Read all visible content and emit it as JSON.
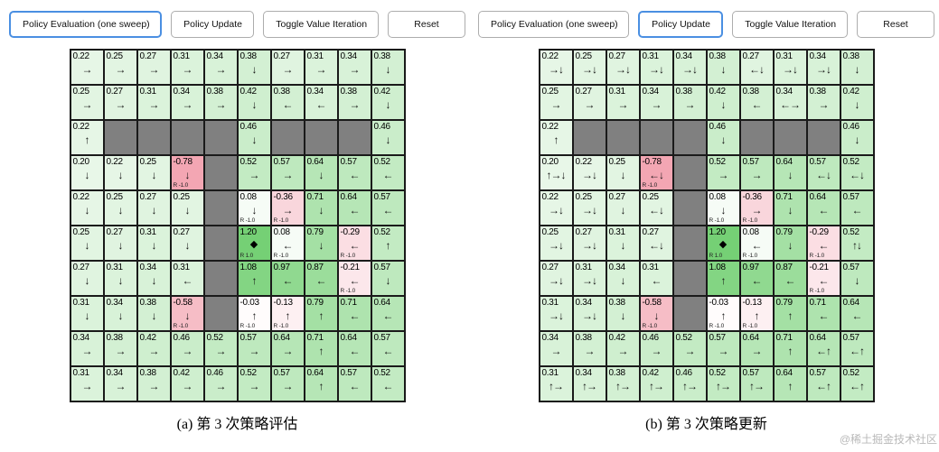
{
  "watermark": "@稀土掘金技术社区",
  "colors": {
    "active_button_border": "#4a8fe2",
    "button_border": "#adadad",
    "wall": "#808080",
    "positive_rgb": "0,168,0",
    "negative_rgb": "224,28,60",
    "grid_line": "#1a1a1a"
  },
  "panels": [
    {
      "caption": "(a) 第 3 次策略评估",
      "buttons": [
        {
          "label": "Policy Evaluation (one sweep)",
          "active": true
        },
        {
          "label": "Policy Update",
          "active": false
        },
        {
          "label": "Toggle Value Iteration",
          "active": false
        },
        {
          "label": "Reset",
          "active": false
        }
      ],
      "grid": [
        [
          {
            "t": "0.22",
            "a": "→"
          },
          {
            "t": "0.25",
            "a": "→"
          },
          {
            "t": "0.27",
            "a": "→"
          },
          {
            "t": "0.31",
            "a": "→"
          },
          {
            "t": "0.34",
            "a": "→"
          },
          {
            "t": "0.38",
            "a": "↓"
          },
          {
            "t": "0.27",
            "a": "→"
          },
          {
            "t": "0.31",
            "a": "→"
          },
          {
            "t": "0.34",
            "a": "→"
          },
          {
            "t": "0.38",
            "a": "↓"
          }
        ],
        [
          {
            "t": "0.25",
            "a": "→"
          },
          {
            "t": "0.27",
            "a": "→"
          },
          {
            "t": "0.31",
            "a": "→"
          },
          {
            "t": "0.34",
            "a": "→"
          },
          {
            "t": "0.38",
            "a": "→"
          },
          {
            "t": "0.42",
            "a": "↓"
          },
          {
            "t": "0.38",
            "a": "←"
          },
          {
            "t": "0.34",
            "a": "←"
          },
          {
            "t": "0.38",
            "a": "→"
          },
          {
            "t": "0.42",
            "a": "↓"
          }
        ],
        [
          {
            "t": "0.22",
            "a": "↑"
          },
          {
            "w": 1
          },
          {
            "w": 1
          },
          {
            "w": 1
          },
          {
            "w": 1
          },
          {
            "t": "0.46",
            "a": "↓"
          },
          {
            "w": 1
          },
          {
            "w": 1
          },
          {
            "w": 1
          },
          {
            "t": "0.46",
            "a": "↓"
          }
        ],
        [
          {
            "t": "0.20",
            "a": "↓"
          },
          {
            "t": "0.22",
            "a": "↓"
          },
          {
            "t": "0.25",
            "a": "↓"
          },
          {
            "t": "-0.78",
            "a": "↓",
            "r": "R -1.0"
          },
          {
            "w": 1
          },
          {
            "t": "0.52",
            "a": "→"
          },
          {
            "t": "0.57",
            "a": "→"
          },
          {
            "t": "0.64",
            "a": "↓"
          },
          {
            "t": "0.57",
            "a": "←"
          },
          {
            "t": "0.52",
            "a": "←"
          }
        ],
        [
          {
            "t": "0.22",
            "a": "↓"
          },
          {
            "t": "0.25",
            "a": "↓"
          },
          {
            "t": "0.27",
            "a": "↓"
          },
          {
            "t": "0.25",
            "a": "↓"
          },
          {
            "w": 1
          },
          {
            "t": "0.08",
            "a": "↓",
            "r": "R -1.0"
          },
          {
            "t": "-0.36",
            "a": "→",
            "r": "R -1.0"
          },
          {
            "t": "0.71",
            "a": "↓"
          },
          {
            "t": "0.64",
            "a": "←"
          },
          {
            "t": "0.57",
            "a": "←"
          }
        ],
        [
          {
            "t": "0.25",
            "a": "↓"
          },
          {
            "t": "0.27",
            "a": "↓"
          },
          {
            "t": "0.31",
            "a": "↓"
          },
          {
            "t": "0.27",
            "a": "↓"
          },
          {
            "w": 1
          },
          {
            "t": "1.20",
            "a": "",
            "r": "R 1.0",
            "g": 1
          },
          {
            "t": "0.08",
            "a": "←",
            "r": "R -1.0"
          },
          {
            "t": "0.79",
            "a": "↓"
          },
          {
            "t": "-0.29",
            "a": "←",
            "r": "R -1.0"
          },
          {
            "t": "0.52",
            "a": "↑"
          }
        ],
        [
          {
            "t": "0.27",
            "a": "↓"
          },
          {
            "t": "0.31",
            "a": "↓"
          },
          {
            "t": "0.34",
            "a": "↓"
          },
          {
            "t": "0.31",
            "a": "←"
          },
          {
            "w": 1
          },
          {
            "t": "1.08",
            "a": "↑"
          },
          {
            "t": "0.97",
            "a": "←"
          },
          {
            "t": "0.87",
            "a": "←"
          },
          {
            "t": "-0.21",
            "a": "←",
            "r": "R -1.0"
          },
          {
            "t": "0.57",
            "a": "↓"
          }
        ],
        [
          {
            "t": "0.31",
            "a": "↓"
          },
          {
            "t": "0.34",
            "a": "↓"
          },
          {
            "t": "0.38",
            "a": "↓"
          },
          {
            "t": "-0.58",
            "a": "↓",
            "r": "R -1.0"
          },
          {
            "w": 1
          },
          {
            "t": "-0.03",
            "a": "↑",
            "r": "R -1.0"
          },
          {
            "t": "-0.13",
            "a": "↑",
            "r": "R -1.0"
          },
          {
            "t": "0.79",
            "a": "↑"
          },
          {
            "t": "0.71",
            "a": "←"
          },
          {
            "t": "0.64",
            "a": "←"
          }
        ],
        [
          {
            "t": "0.34",
            "a": "→"
          },
          {
            "t": "0.38",
            "a": "→"
          },
          {
            "t": "0.42",
            "a": "→"
          },
          {
            "t": "0.46",
            "a": "→"
          },
          {
            "t": "0.52",
            "a": "→"
          },
          {
            "t": "0.57",
            "a": "→"
          },
          {
            "t": "0.64",
            "a": "→"
          },
          {
            "t": "0.71",
            "a": "↑"
          },
          {
            "t": "0.64",
            "a": "←"
          },
          {
            "t": "0.57",
            "a": "←"
          }
        ],
        [
          {
            "t": "0.31",
            "a": "→"
          },
          {
            "t": "0.34",
            "a": "→"
          },
          {
            "t": "0.38",
            "a": "→"
          },
          {
            "t": "0.42",
            "a": "→"
          },
          {
            "t": "0.46",
            "a": "→"
          },
          {
            "t": "0.52",
            "a": "→"
          },
          {
            "t": "0.57",
            "a": "→"
          },
          {
            "t": "0.64",
            "a": "↑"
          },
          {
            "t": "0.57",
            "a": "←"
          },
          {
            "t": "0.52",
            "a": "←"
          }
        ]
      ]
    },
    {
      "caption": "(b) 第 3 次策略更新",
      "buttons": [
        {
          "label": "Policy Evaluation (one sweep)",
          "active": false
        },
        {
          "label": "Policy Update",
          "active": true
        },
        {
          "label": "Toggle Value Iteration",
          "active": false
        },
        {
          "label": "Reset",
          "active": false
        }
      ],
      "grid": [
        [
          {
            "t": "0.22",
            "a": "→↓"
          },
          {
            "t": "0.25",
            "a": "→↓"
          },
          {
            "t": "0.27",
            "a": "→↓"
          },
          {
            "t": "0.31",
            "a": "→↓"
          },
          {
            "t": "0.34",
            "a": "→↓"
          },
          {
            "t": "0.38",
            "a": "↓"
          },
          {
            "t": "0.27",
            "a": "←↓"
          },
          {
            "t": "0.31",
            "a": "→↓"
          },
          {
            "t": "0.34",
            "a": "→↓"
          },
          {
            "t": "0.38",
            "a": "↓"
          }
        ],
        [
          {
            "t": "0.25",
            "a": "→"
          },
          {
            "t": "0.27",
            "a": "→"
          },
          {
            "t": "0.31",
            "a": "→"
          },
          {
            "t": "0.34",
            "a": "→"
          },
          {
            "t": "0.38",
            "a": "→"
          },
          {
            "t": "0.42",
            "a": "↓"
          },
          {
            "t": "0.38",
            "a": "←"
          },
          {
            "t": "0.34",
            "a": "←→"
          },
          {
            "t": "0.38",
            "a": "→"
          },
          {
            "t": "0.42",
            "a": "↓"
          }
        ],
        [
          {
            "t": "0.22",
            "a": "↑"
          },
          {
            "w": 1
          },
          {
            "w": 1
          },
          {
            "w": 1
          },
          {
            "w": 1
          },
          {
            "t": "0.46",
            "a": "↓"
          },
          {
            "w": 1
          },
          {
            "w": 1
          },
          {
            "w": 1
          },
          {
            "t": "0.46",
            "a": "↓"
          }
        ],
        [
          {
            "t": "0.20",
            "a": "↑→↓"
          },
          {
            "t": "0.22",
            "a": "→↓"
          },
          {
            "t": "0.25",
            "a": "↓"
          },
          {
            "t": "-0.78",
            "a": "←↓",
            "r": "R -1.0"
          },
          {
            "w": 1
          },
          {
            "t": "0.52",
            "a": "→"
          },
          {
            "t": "0.57",
            "a": "→"
          },
          {
            "t": "0.64",
            "a": "↓"
          },
          {
            "t": "0.57",
            "a": "←↓"
          },
          {
            "t": "0.52",
            "a": "←↓"
          }
        ],
        [
          {
            "t": "0.22",
            "a": "→↓"
          },
          {
            "t": "0.25",
            "a": "→↓"
          },
          {
            "t": "0.27",
            "a": "↓"
          },
          {
            "t": "0.25",
            "a": "←↓"
          },
          {
            "w": 1
          },
          {
            "t": "0.08",
            "a": "↓",
            "r": "R -1.0"
          },
          {
            "t": "-0.36",
            "a": "→",
            "r": "R -1.0"
          },
          {
            "t": "0.71",
            "a": "↓"
          },
          {
            "t": "0.64",
            "a": "←"
          },
          {
            "t": "0.57",
            "a": "←"
          }
        ],
        [
          {
            "t": "0.25",
            "a": "→↓"
          },
          {
            "t": "0.27",
            "a": "→↓"
          },
          {
            "t": "0.31",
            "a": "↓"
          },
          {
            "t": "0.27",
            "a": "←↓"
          },
          {
            "w": 1
          },
          {
            "t": "1.20",
            "a": "",
            "r": "R 1.0",
            "g": 1
          },
          {
            "t": "0.08",
            "a": "←",
            "r": "R -1.0"
          },
          {
            "t": "0.79",
            "a": "↓"
          },
          {
            "t": "-0.29",
            "a": "←",
            "r": "R -1.0"
          },
          {
            "t": "0.52",
            "a": "↑↓"
          }
        ],
        [
          {
            "t": "0.27",
            "a": "→↓"
          },
          {
            "t": "0.31",
            "a": "→↓"
          },
          {
            "t": "0.34",
            "a": "↓"
          },
          {
            "t": "0.31",
            "a": "←"
          },
          {
            "w": 1
          },
          {
            "t": "1.08",
            "a": "↑"
          },
          {
            "t": "0.97",
            "a": "←"
          },
          {
            "t": "0.87",
            "a": "←"
          },
          {
            "t": "-0.21",
            "a": "←",
            "r": "R -1.0"
          },
          {
            "t": "0.57",
            "a": "↓"
          }
        ],
        [
          {
            "t": "0.31",
            "a": "→↓"
          },
          {
            "t": "0.34",
            "a": "→↓"
          },
          {
            "t": "0.38",
            "a": "↓"
          },
          {
            "t": "-0.58",
            "a": "↓",
            "r": "R -1.0"
          },
          {
            "w": 1
          },
          {
            "t": "-0.03",
            "a": "↑",
            "r": "R -1.0"
          },
          {
            "t": "-0.13",
            "a": "↑",
            "r": "R -1.0"
          },
          {
            "t": "0.79",
            "a": "↑"
          },
          {
            "t": "0.71",
            "a": "←"
          },
          {
            "t": "0.64",
            "a": "←"
          }
        ],
        [
          {
            "t": "0.34",
            "a": "→"
          },
          {
            "t": "0.38",
            "a": "→"
          },
          {
            "t": "0.42",
            "a": "→"
          },
          {
            "t": "0.46",
            "a": "→"
          },
          {
            "t": "0.52",
            "a": "→"
          },
          {
            "t": "0.57",
            "a": "→"
          },
          {
            "t": "0.64",
            "a": "→"
          },
          {
            "t": "0.71",
            "a": "↑"
          },
          {
            "t": "0.64",
            "a": "←↑"
          },
          {
            "t": "0.57",
            "a": "←↑"
          }
        ],
        [
          {
            "t": "0.31",
            "a": "↑→"
          },
          {
            "t": "0.34",
            "a": "↑→"
          },
          {
            "t": "0.38",
            "a": "↑→"
          },
          {
            "t": "0.42",
            "a": "↑→"
          },
          {
            "t": "0.46",
            "a": "↑→"
          },
          {
            "t": "0.52",
            "a": "↑→"
          },
          {
            "t": "0.57",
            "a": "↑→"
          },
          {
            "t": "0.64",
            "a": "↑"
          },
          {
            "t": "0.57",
            "a": "←↑"
          },
          {
            "t": "0.52",
            "a": "←↑"
          }
        ]
      ]
    }
  ]
}
